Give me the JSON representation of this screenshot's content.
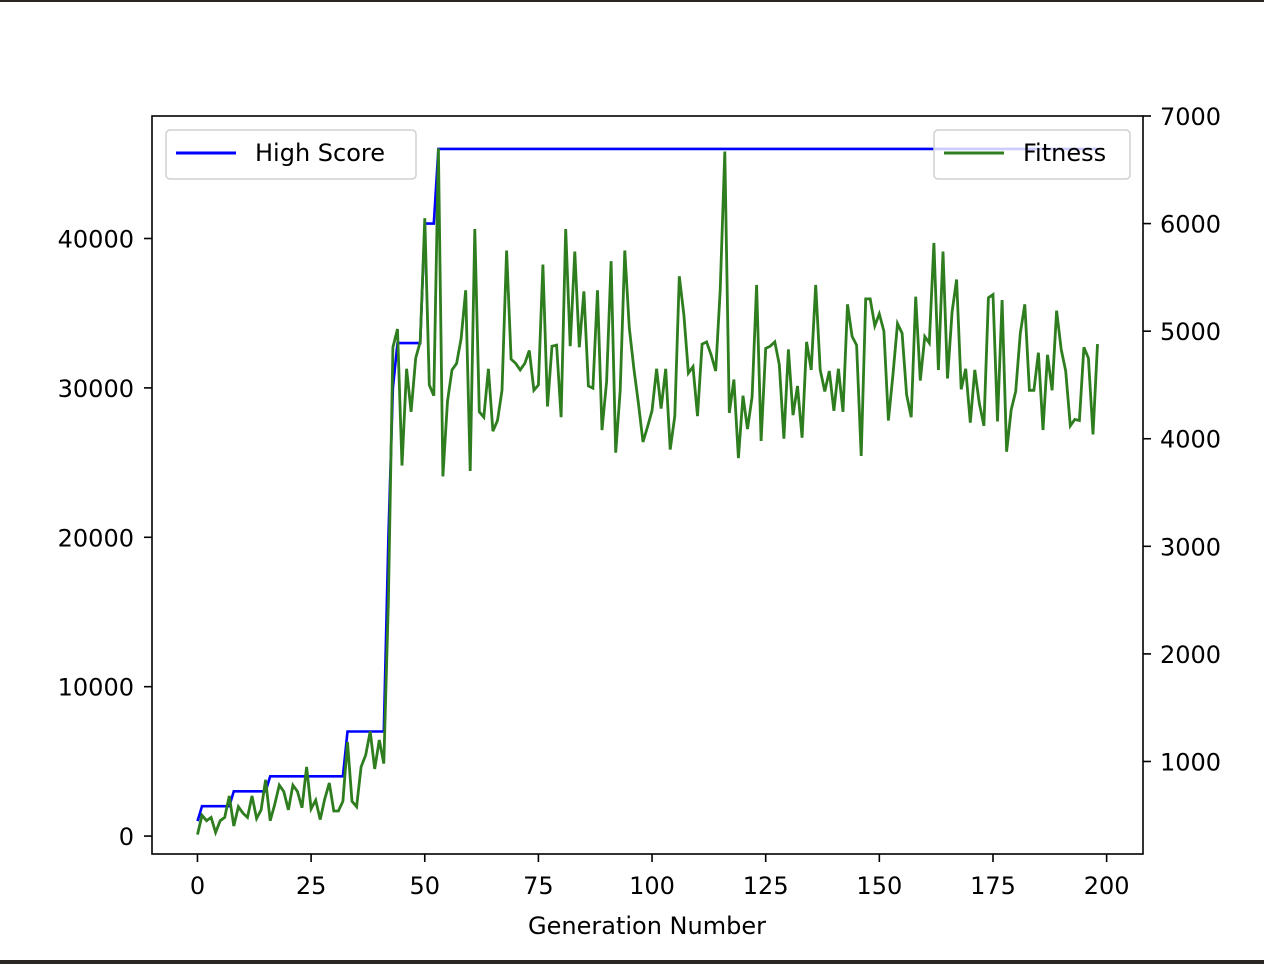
{
  "chart_data": {
    "type": "line",
    "xlabel": "Generation Number",
    "xlim": [
      -10,
      208
    ],
    "x_ticks": [
      0,
      25,
      50,
      75,
      100,
      125,
      150,
      175,
      200
    ],
    "left_axis": {
      "ylabel": "",
      "ylim": [
        -1200,
        48200
      ],
      "ticks": [
        0,
        10000,
        20000,
        30000,
        40000
      ]
    },
    "right_axis": {
      "ylabel": "",
      "ylim": [
        140,
        7000
      ],
      "ticks": [
        1000,
        2000,
        3000,
        4000,
        5000,
        6000,
        7000
      ]
    },
    "grid": false,
    "series": [
      {
        "name": "High Score",
        "axis": "left",
        "color": "#0000ff",
        "legend_position": "upper-left",
        "x": [
          0,
          1,
          2,
          7,
          8,
          15,
          16,
          32,
          33,
          41,
          42,
          43,
          44,
          49,
          50,
          52,
          53,
          198
        ],
        "values": [
          1000,
          2000,
          2000,
          2000,
          3000,
          3000,
          4000,
          4000,
          7000,
          7000,
          20000,
          30000,
          33000,
          33000,
          41000,
          41000,
          46000,
          46000
        ]
      },
      {
        "name": "Fitness",
        "axis": "right",
        "color": "#2e7d1e",
        "legend_position": "upper-right",
        "x": [
          0,
          1,
          2,
          3,
          4,
          5,
          6,
          7,
          8,
          9,
          10,
          11,
          12,
          13,
          14,
          15,
          16,
          17,
          18,
          19,
          20,
          21,
          22,
          23,
          24,
          25,
          26,
          27,
          28,
          29,
          30,
          31,
          32,
          33,
          34,
          35,
          36,
          37,
          38,
          39,
          40,
          41,
          42,
          43,
          44,
          45,
          46,
          47,
          48,
          49,
          50,
          51,
          52,
          53,
          54,
          55,
          56,
          57,
          58,
          59,
          60,
          61,
          62,
          63,
          64,
          65,
          66,
          67,
          68,
          69,
          70,
          71,
          72,
          73,
          74,
          75,
          76,
          77,
          78,
          79,
          80,
          81,
          82,
          83,
          84,
          85,
          86,
          87,
          88,
          89,
          90,
          91,
          92,
          93,
          94,
          95,
          96,
          97,
          98,
          99,
          100,
          101,
          102,
          103,
          104,
          105,
          106,
          107,
          108,
          109,
          110,
          111,
          112,
          113,
          114,
          115,
          116,
          117,
          118,
          119,
          120,
          121,
          122,
          123,
          124,
          125,
          126,
          127,
          128,
          129,
          130,
          131,
          132,
          133,
          134,
          135,
          136,
          137,
          138,
          139,
          140,
          141,
          142,
          143,
          144,
          145,
          146,
          147,
          148,
          149,
          150,
          151,
          152,
          153,
          154,
          155,
          156,
          157,
          158,
          159,
          160,
          161,
          162,
          163,
          164,
          165,
          166,
          167,
          168,
          169,
          170,
          171,
          172,
          173,
          174,
          175,
          176,
          177,
          178,
          179,
          180,
          181,
          182,
          183,
          184,
          185,
          186,
          187,
          188,
          189,
          190,
          191,
          192,
          193,
          194,
          195,
          196,
          197,
          198
        ],
        "values": [
          320,
          500,
          450,
          480,
          340,
          450,
          480,
          680,
          400,
          580,
          520,
          480,
          680,
          470,
          550,
          830,
          450,
          600,
          780,
          720,
          550,
          780,
          720,
          570,
          950,
          560,
          640,
          460,
          650,
          800,
          540,
          540,
          630,
          1180,
          630,
          580,
          950,
          1060,
          1280,
          930,
          1200,
          980,
          2500,
          4850,
          5020,
          3750,
          4650,
          4250,
          4750,
          4900,
          6050,
          4500,
          4400,
          6700,
          3650,
          4350,
          4640,
          4700,
          4930,
          5380,
          3700,
          5950,
          4250,
          4200,
          4650,
          4070,
          4170,
          4450,
          5750,
          4740,
          4700,
          4640,
          4700,
          4820,
          4450,
          4500,
          5620,
          4300,
          4860,
          4870,
          4200,
          5950,
          4860,
          5740,
          4850,
          5370,
          4490,
          4470,
          5380,
          4080,
          4530,
          5650,
          3870,
          4450,
          5750,
          5030,
          4650,
          4330,
          3970,
          4110,
          4260,
          4650,
          4280,
          4650,
          3900,
          4210,
          5510,
          5150,
          4610,
          4670,
          4210,
          4880,
          4900,
          4780,
          4630,
          5380,
          6670,
          4240,
          4550,
          3820,
          4400,
          4090,
          4390,
          5430,
          3980,
          4840,
          4860,
          4900,
          4690,
          4000,
          4830,
          4220,
          4490,
          4010,
          4900,
          4640,
          5430,
          4640,
          4440,
          4630,
          4260,
          4650,
          4250,
          5250,
          4950,
          4870,
          3840,
          5300,
          5300,
          5050,
          5160,
          5000,
          4170,
          4600,
          5070,
          4980,
          4410,
          4200,
          5320,
          4540,
          4950,
          4890,
          5820,
          4640,
          5740,
          4560,
          5180,
          5480,
          4460,
          4650,
          4150,
          4640,
          4330,
          4120,
          5310,
          5340,
          4160,
          5290,
          3880,
          4270,
          4440,
          4980,
          5250,
          4450,
          4450,
          4800,
          4080,
          4780,
          4450,
          5190,
          4830,
          4630,
          4120,
          4180,
          4170,
          4850,
          4750,
          4040,
          4880
        ]
      }
    ],
    "legend": [
      "High Score",
      "Fitness"
    ]
  }
}
